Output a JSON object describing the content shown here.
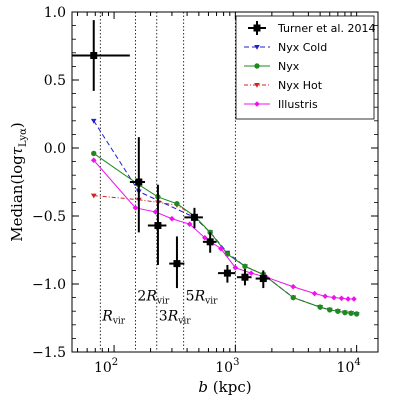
{
  "chart_data": {
    "type": "scatter",
    "x_scale": "log",
    "xlim": [
      45,
      15000
    ],
    "ylim": [
      -1.5,
      1.0
    ],
    "x_ticks": [
      {
        "value": 100,
        "base": "10",
        "exp": "2"
      },
      {
        "value": 1000,
        "base": "10",
        "exp": "3"
      },
      {
        "value": 10000,
        "base": "10",
        "exp": "4"
      }
    ],
    "y_ticks": [
      {
        "value": 1.0,
        "label": "1.0"
      },
      {
        "value": 0.5,
        "label": "0.5"
      },
      {
        "value": 0.0,
        "label": "0.0"
      },
      {
        "value": -0.5,
        "label": "−0.5"
      },
      {
        "value": -1.0,
        "label": "−1.0"
      },
      {
        "value": -1.5,
        "label": "−1.5"
      }
    ],
    "xlabel": {
      "symbol": "b",
      "unit": "(kpc)"
    },
    "ylabel": {
      "text": "Median(log",
      "tau": "τ",
      "sub": "Lyα",
      "close": ")"
    },
    "grid": false,
    "legend_position": "top-right",
    "series": [
      {
        "name": "Turner et al. 2014",
        "style": "errorbar",
        "color": "#000000",
        "points": [
          {
            "x": 68,
            "y": 0.68,
            "xlo": 45,
            "xhi": 135,
            "ylo": 0.42,
            "yhi": 0.94
          },
          {
            "x": 160,
            "y": -0.25,
            "xlo": 135,
            "xhi": 180,
            "ylo": -0.62,
            "yhi": 0.08
          },
          {
            "x": 230,
            "y": -0.57,
            "xlo": 190,
            "xhi": 270,
            "ylo": -0.86,
            "yhi": -0.27
          },
          {
            "x": 330,
            "y": -0.85,
            "xlo": 285,
            "xhi": 380,
            "ylo": -1.03,
            "yhi": -0.65
          },
          {
            "x": 460,
            "y": -0.51,
            "xlo": 380,
            "xhi": 540,
            "ylo": -0.59,
            "yhi": -0.44
          },
          {
            "x": 620,
            "y": -0.69,
            "xlo": 540,
            "xhi": 700,
            "ylo": -0.77,
            "yhi": -0.62
          },
          {
            "x": 860,
            "y": -0.92,
            "xlo": 720,
            "xhi": 1000,
            "ylo": -0.99,
            "yhi": -0.86
          },
          {
            "x": 1200,
            "y": -0.95,
            "xlo": 1030,
            "xhi": 1360,
            "ylo": -1.01,
            "yhi": -0.89
          },
          {
            "x": 1700,
            "y": -0.96,
            "xlo": 1470,
            "xhi": 1930,
            "ylo": -1.03,
            "yhi": -0.9
          }
        ]
      },
      {
        "name": "Nyx Cold",
        "style": "line",
        "dash": "dashed",
        "marker": "triangle",
        "color": "#1f1fd6",
        "x": [
          68,
          160,
          460,
          620,
          860,
          1200,
          1700,
          3000,
          5000,
          6000,
          7000,
          8000,
          9000,
          10000
        ],
        "y": [
          0.2,
          -0.32,
          -0.51,
          -0.62,
          -0.77,
          -0.87,
          -0.93,
          -1.1,
          -1.17,
          -1.19,
          -1.2,
          -1.21,
          -1.215,
          -1.22
        ]
      },
      {
        "name": "Nyx",
        "style": "line",
        "dash": "solid",
        "marker": "circle",
        "color": "#1e8a1e",
        "x": [
          68,
          160,
          230,
          330,
          460,
          620,
          860,
          1200,
          1700,
          3000,
          5000,
          6000,
          7000,
          8000,
          9000,
          10000
        ],
        "y": [
          -0.04,
          -0.27,
          -0.36,
          -0.41,
          -0.5,
          -0.62,
          -0.78,
          -0.87,
          -0.93,
          -1.1,
          -1.17,
          -1.19,
          -1.2,
          -1.21,
          -1.215,
          -1.22
        ]
      },
      {
        "name": "Nyx Hot",
        "style": "line",
        "dash": "dashdot",
        "marker": "triangle",
        "color": "#d42020",
        "x": [
          68,
          160,
          230,
          330,
          460,
          620,
          860,
          1200,
          1700,
          3000,
          5000,
          6000,
          7000,
          8000,
          9000,
          10000
        ],
        "y": [
          -0.35,
          -0.38,
          -0.4,
          -0.42,
          -0.5,
          -0.62,
          -0.78,
          -0.87,
          -0.93,
          -1.1,
          -1.17,
          -1.19,
          -1.2,
          -1.21,
          -1.215,
          -1.22
        ]
      },
      {
        "name": "Illustris",
        "style": "line",
        "dash": "solid",
        "marker": "diamond",
        "color": "#f010f0",
        "x": [
          68,
          150,
          220,
          300,
          420,
          560,
          760,
          1000,
          1350,
          1800,
          3000,
          4500,
          5500,
          6500,
          7500,
          8500,
          9500
        ],
        "y": [
          -0.09,
          -0.44,
          -0.47,
          -0.52,
          -0.56,
          -0.66,
          -0.74,
          -0.88,
          -0.92,
          -0.95,
          -1.02,
          -1.07,
          -1.09,
          -1.1,
          -1.105,
          -1.11,
          -1.11
        ]
      }
    ],
    "vlines": [
      {
        "x": 77,
        "symbol": "R",
        "sub": "vir",
        "prefix": "",
        "label_y": -1.27
      },
      {
        "x": 150,
        "symbol": "R",
        "sub": "vir",
        "prefix": "2",
        "label_y": -1.12
      },
      {
        "x": 225,
        "symbol": "R",
        "sub": "vir",
        "prefix": "3",
        "label_y": -1.27
      },
      {
        "x": 375,
        "symbol": "R",
        "sub": "vir",
        "prefix": "5",
        "label_y": -1.12
      },
      {
        "x": 1000,
        "symbol": "",
        "sub": "",
        "prefix": "",
        "label_y": null
      }
    ]
  }
}
